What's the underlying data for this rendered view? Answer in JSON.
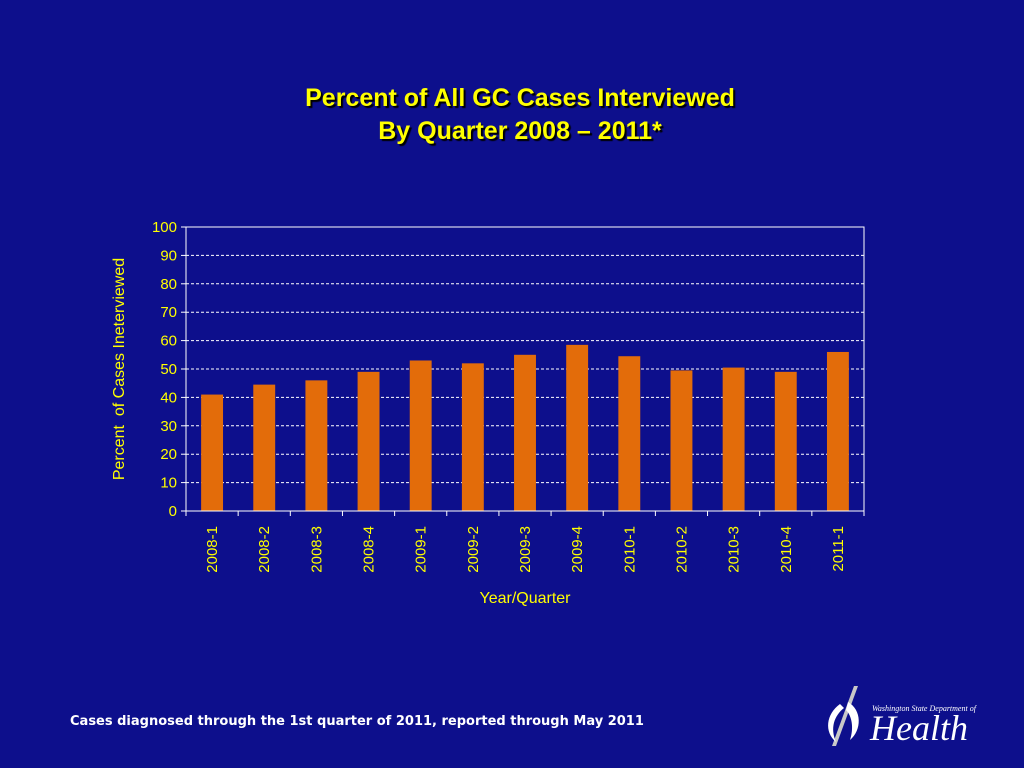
{
  "slide": {
    "title_line1": "Percent of All GC Cases Interviewed",
    "title_line2": "By Quarter 2008 – 2011*",
    "footnote": "Cases diagnosed through the 1st quarter of 2011, reported through May 2011"
  },
  "logo": {
    "department": "Washington State Department of",
    "name": "Health"
  },
  "colors": {
    "background": "#0d0f8c",
    "bar": "#e36c0a",
    "text": "#ffff00",
    "grid": "#ffffff"
  },
  "chart_data": {
    "type": "bar",
    "categories": [
      "2008-1",
      "2008-2",
      "2008-3",
      "2008-4",
      "2009-1",
      "2009-2",
      "2009-3",
      "2009-4",
      "2010-1",
      "2010-2",
      "2010-3",
      "2010-4",
      "2011-1"
    ],
    "values": [
      41,
      44.5,
      46,
      49,
      53,
      52,
      55,
      58.5,
      54.5,
      49.5,
      50.5,
      49,
      56
    ],
    "title": "",
    "xlabel": "Year/Quarter",
    "ylabel": "Percent  of Cases Ineterviewed",
    "ylim": [
      0,
      100
    ],
    "yticks": [
      0,
      10,
      20,
      30,
      40,
      50,
      60,
      70,
      80,
      90,
      100
    ],
    "grid": true,
    "legend": "none"
  }
}
